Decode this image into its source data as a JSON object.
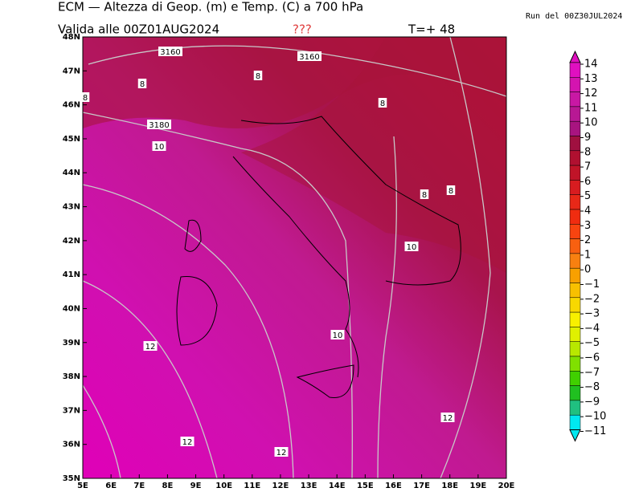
{
  "header": {
    "title": "ECM — Altezza di Geop. (m) e Temp. (C) a 700 hPa",
    "valid": "Valida alle 00Z01AUG2024",
    "flag": "???",
    "step": "T=+ 48",
    "run": "Run del 00Z30JUL2024"
  },
  "map": {
    "lon_labels": [
      "5E",
      "6E",
      "7E",
      "8E",
      "9E",
      "10E",
      "11E",
      "12E",
      "13E",
      "14E",
      "15E",
      "16E",
      "17E",
      "18E",
      "19E",
      "20E"
    ],
    "lat_labels": [
      "35N",
      "36N",
      "37N",
      "38N",
      "39N",
      "40N",
      "41N",
      "42N",
      "43N",
      "44N",
      "45N",
      "46N",
      "47N",
      "48N"
    ],
    "contour_labels": [
      "3160",
      "3160",
      "8",
      "8",
      "8",
      "8",
      "3180",
      "10",
      "8",
      "8",
      "10",
      "10",
      "12",
      "12",
      "12",
      "12"
    ]
  },
  "colorbar": {
    "labels": [
      "14",
      "13",
      "12",
      "11",
      "10",
      "9",
      "8",
      "7",
      "6",
      "5",
      "4",
      "3",
      "2",
      "1",
      "0",
      "−1",
      "−2",
      "−3",
      "−4",
      "−5",
      "−6",
      "−7",
      "−8",
      "−9",
      "−10",
      "−11"
    ],
    "colors": [
      "#e010c0",
      "#d414b0",
      "#c818a4",
      "#b81894",
      "#a81480",
      "#a01040",
      "#b01030",
      "#c01428",
      "#d81c20",
      "#e82818",
      "#f02c10",
      "#f84410",
      "#f86010",
      "#f88010",
      "#f8a000",
      "#f8c000",
      "#f8d800",
      "#f8f000",
      "#e0f000",
      "#b8e800",
      "#80e000",
      "#40d000",
      "#20c020",
      "#20c080",
      "#40e0c0",
      "#00e8f0"
    ]
  }
}
